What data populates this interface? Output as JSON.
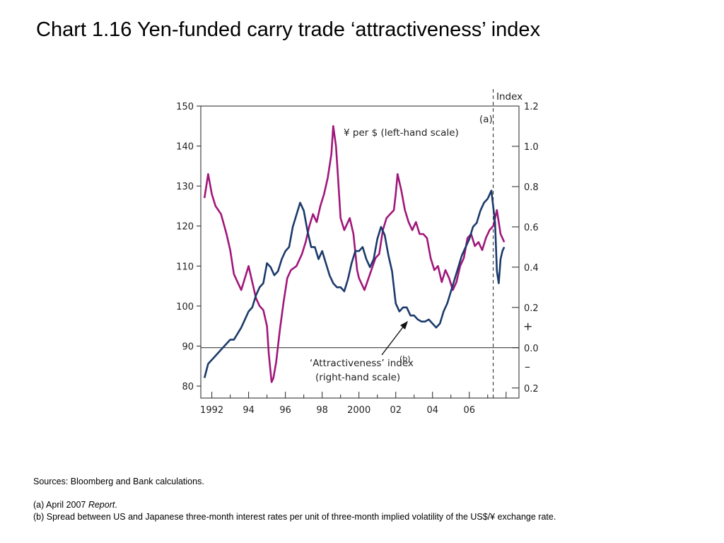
{
  "title": "Chart 1.16  Yen-funded carry trade ‘attractiveness’ index",
  "chart_data": {
    "type": "line",
    "right_axis_title": "Index",
    "annotations": {
      "a_marker": "(a)",
      "yen_label": "¥ per $ (left-hand scale)",
      "attr_label_line1": "‘Attractiveness’ index",
      "attr_label_sup": "(b)",
      "attr_label_line2": "(right-hand scale)",
      "plus_sign": "+",
      "minus_sign": "–"
    },
    "x_ticks": [
      "1992",
      "94",
      "96",
      "98",
      "2000",
      "02",
      "04",
      "06"
    ],
    "x_tick_years": [
      1992,
      1994,
      1996,
      1998,
      2000,
      2002,
      2004,
      2006
    ],
    "xlim": [
      1991.4,
      2008.7
    ],
    "dashed_line_year": 2007.3,
    "left_axis": {
      "ticks": [
        "150",
        "140",
        "130",
        "120",
        "110",
        "100",
        "90",
        "80"
      ],
      "ylim": [
        77,
        150
      ]
    },
    "right_axis": {
      "ticks": [
        "1.2",
        "1.0",
        "0.8",
        "0.6",
        "0.4",
        "0.2",
        "0.0",
        "0.2"
      ],
      "ylim": [
        -0.25,
        1.2
      ],
      "tick_values": [
        1.2,
        1.0,
        0.8,
        0.6,
        0.4,
        0.2,
        0.0,
        -0.2
      ]
    },
    "zero_line": 0.0,
    "series": [
      {
        "name": "¥ per $ (left-hand scale)",
        "axis": "left",
        "color": "#a0167b",
        "x": [
          1991.6,
          1991.8,
          1992.0,
          1992.2,
          1992.5,
          1992.8,
          1993.0,
          1993.2,
          1993.4,
          1993.6,
          1993.8,
          1994.0,
          1994.2,
          1994.4,
          1994.6,
          1994.8,
          1995.0,
          1995.1,
          1995.25,
          1995.35,
          1995.5,
          1995.7,
          1995.9,
          1996.1,
          1996.3,
          1996.6,
          1996.9,
          1997.1,
          1997.3,
          1997.5,
          1997.7,
          1997.9,
          1998.1,
          1998.3,
          1998.5,
          1998.6,
          1998.75,
          1998.85,
          1999.0,
          1999.2,
          1999.5,
          1999.7,
          1999.9,
          2000.0,
          2000.3,
          2000.6,
          2000.9,
          2001.1,
          2001.3,
          2001.5,
          2001.7,
          2001.9,
          2002.0,
          2002.1,
          2002.3,
          2002.5,
          2002.7,
          2002.9,
          2003.1,
          2003.3,
          2003.5,
          2003.7,
          2003.9,
          2004.1,
          2004.3,
          2004.5,
          2004.7,
          2004.9,
          2005.1,
          2005.3,
          2005.5,
          2005.7,
          2005.9,
          2006.1,
          2006.3,
          2006.5,
          2006.7,
          2006.9,
          2007.1,
          2007.3,
          2007.5,
          2007.7,
          2007.9
        ],
        "values": [
          127,
          133,
          128,
          125,
          123,
          118,
          114,
          108,
          106,
          104,
          107,
          110,
          106,
          102,
          100,
          99,
          95,
          88,
          81,
          82,
          86,
          94,
          101,
          107,
          109,
          110,
          113,
          116,
          120,
          123,
          121,
          125,
          128,
          132,
          138,
          145,
          140,
          133,
          122,
          119,
          122,
          118,
          109,
          107,
          104,
          108,
          112,
          113,
          119,
          122,
          123,
          124,
          128,
          133,
          129,
          124,
          121,
          119,
          121,
          118,
          118,
          117,
          112,
          109,
          110,
          106,
          109,
          107,
          104,
          106,
          110,
          112,
          117,
          118,
          115,
          116,
          114,
          117,
          119,
          120,
          124,
          118,
          116
        ]
      },
      {
        "name": "‘Attractiveness’ index (right-hand scale)",
        "axis": "right",
        "color": "#1b3a6b",
        "x": [
          1991.6,
          1991.8,
          1992.0,
          1992.2,
          1992.4,
          1992.6,
          1992.8,
          1993.0,
          1993.2,
          1993.4,
          1993.6,
          1993.8,
          1994.0,
          1994.2,
          1994.4,
          1994.6,
          1994.8,
          1995.0,
          1995.2,
          1995.4,
          1995.6,
          1995.8,
          1996.0,
          1996.2,
          1996.4,
          1996.6,
          1996.8,
          1997.0,
          1997.2,
          1997.4,
          1997.6,
          1997.8,
          1998.0,
          1998.2,
          1998.4,
          1998.6,
          1998.8,
          1999.0,
          1999.2,
          1999.4,
          1999.6,
          1999.8,
          2000.0,
          2000.2,
          2000.4,
          2000.6,
          2000.8,
          2001.0,
          2001.2,
          2001.4,
          2001.6,
          2001.8,
          2002.0,
          2002.2,
          2002.4,
          2002.6,
          2002.8,
          2003.0,
          2003.2,
          2003.4,
          2003.6,
          2003.8,
          2004.0,
          2004.2,
          2004.4,
          2004.6,
          2004.8,
          2005.0,
          2005.2,
          2005.4,
          2005.6,
          2005.8,
          2006.0,
          2006.2,
          2006.4,
          2006.6,
          2006.8,
          2007.0,
          2007.2,
          2007.4,
          2007.5,
          2007.6,
          2007.7,
          2007.8,
          2007.9
        ],
        "values": [
          -0.15,
          -0.08,
          -0.06,
          -0.04,
          -0.02,
          0.0,
          0.02,
          0.04,
          0.04,
          0.07,
          0.1,
          0.14,
          0.18,
          0.2,
          0.26,
          0.3,
          0.32,
          0.42,
          0.4,
          0.36,
          0.38,
          0.44,
          0.48,
          0.5,
          0.6,
          0.66,
          0.72,
          0.68,
          0.58,
          0.5,
          0.5,
          0.44,
          0.48,
          0.42,
          0.36,
          0.32,
          0.3,
          0.3,
          0.28,
          0.34,
          0.42,
          0.48,
          0.48,
          0.5,
          0.44,
          0.4,
          0.44,
          0.54,
          0.6,
          0.56,
          0.46,
          0.38,
          0.22,
          0.18,
          0.2,
          0.2,
          0.16,
          0.16,
          0.14,
          0.13,
          0.13,
          0.14,
          0.12,
          0.1,
          0.12,
          0.18,
          0.22,
          0.28,
          0.34,
          0.4,
          0.46,
          0.5,
          0.54,
          0.6,
          0.62,
          0.68,
          0.72,
          0.74,
          0.78,
          0.62,
          0.38,
          0.32,
          0.44,
          0.48,
          0.5
        ]
      }
    ]
  },
  "notes": {
    "sources": "Sources:  Bloomberg and Bank calculations.",
    "note_a_prefix": "(a)  April 2007 ",
    "note_a_italic": "Report",
    "note_a_suffix": ".",
    "note_b": "(b)  Spread between US and Japanese three-month interest rates per unit of three-month implied volatility of the US$/¥ exchange rate."
  }
}
